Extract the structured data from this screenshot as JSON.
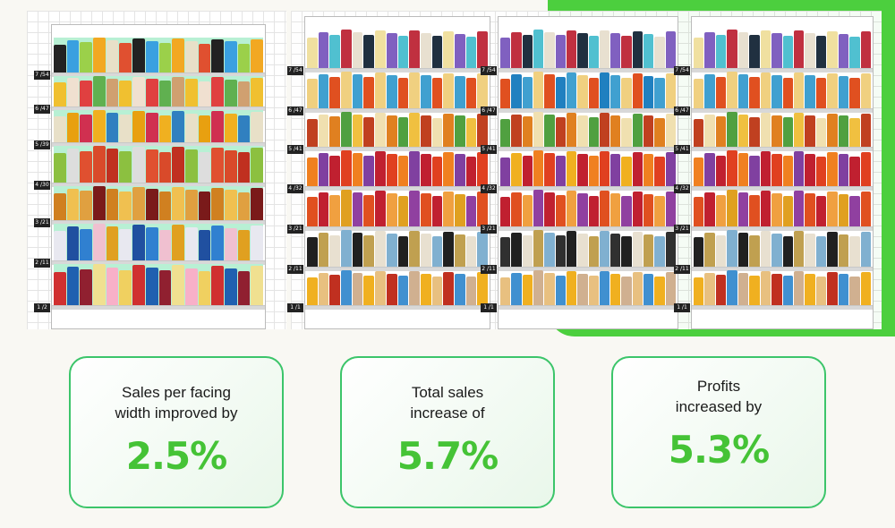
{
  "left_planogram": {
    "shelf_labels": [
      "7 /54",
      "6 /47",
      "5 /39",
      "4 /30",
      "3 /21",
      "2 /11",
      "1 /2"
    ],
    "backdrop_color": "#b8f0d4"
  },
  "right_planogram": {
    "bays": [
      {
        "shelf_labels": [
          "7 /54",
          "6 /47",
          "5 /41",
          "4 /32",
          "3 /21",
          "2 /11",
          "1 /1"
        ]
      },
      {
        "shelf_labels": [
          "7 /54",
          "6 /47",
          "5 /41",
          "4 /32",
          "3 /21",
          "2 /11",
          "1 /1"
        ]
      },
      {
        "shelf_labels": [
          "7 /54",
          "6 /47",
          "5 /41",
          "4 /32",
          "3 /21",
          "2 /11",
          "1 /1"
        ]
      }
    ]
  },
  "accent_color": "#45c336",
  "stats": [
    {
      "label": "Sales per facing width improved by",
      "value": "2.5%"
    },
    {
      "label": "Total sales increase of",
      "value": "5.7%"
    },
    {
      "label": "Profits increased by",
      "value": "5.3%"
    }
  ]
}
